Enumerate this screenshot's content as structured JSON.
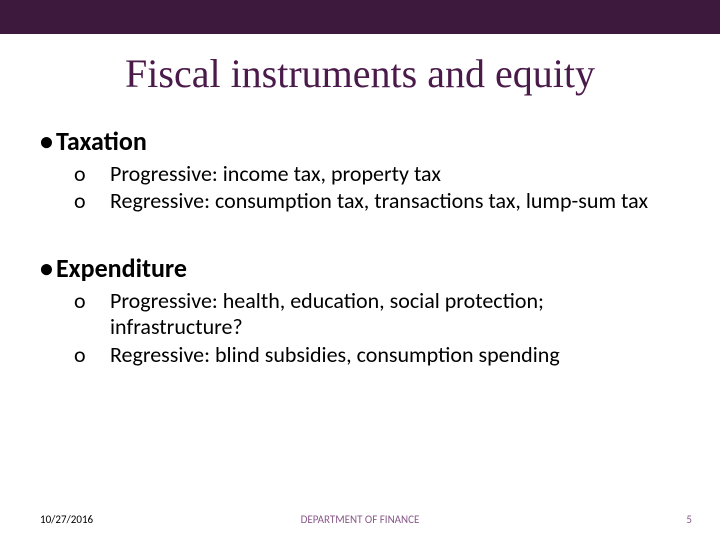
{
  "colors": {
    "top_bar": "#3d1a3d",
    "title_text": "#4a1a4a",
    "body_text": "#000000",
    "footer_accent": "#8a5a8a",
    "background": "#ffffff"
  },
  "typography": {
    "title_font": "Times New Roman",
    "title_size_pt": 40,
    "heading_size_pt": 26,
    "heading_weight": "bold",
    "body_font": "Calibri",
    "body_size_pt": 22,
    "footer_size_pt": 11
  },
  "title": "Fiscal instruments and equity",
  "sections": [
    {
      "heading": "Taxation",
      "items": [
        "Progressive: income tax, property tax",
        "Regressive: consumption tax, transactions tax, lump-sum tax"
      ]
    },
    {
      "heading": "Expenditure",
      "items": [
        "Progressive: health, education, social protection; infrastructure?",
        "Regressive: blind subsidies, consumption spending"
      ]
    }
  ],
  "footer": {
    "date": "10/27/2016",
    "center": "DEPARTMENT OF FINANCE",
    "page": "5"
  },
  "markers": {
    "level1": "•",
    "level2": "o"
  }
}
